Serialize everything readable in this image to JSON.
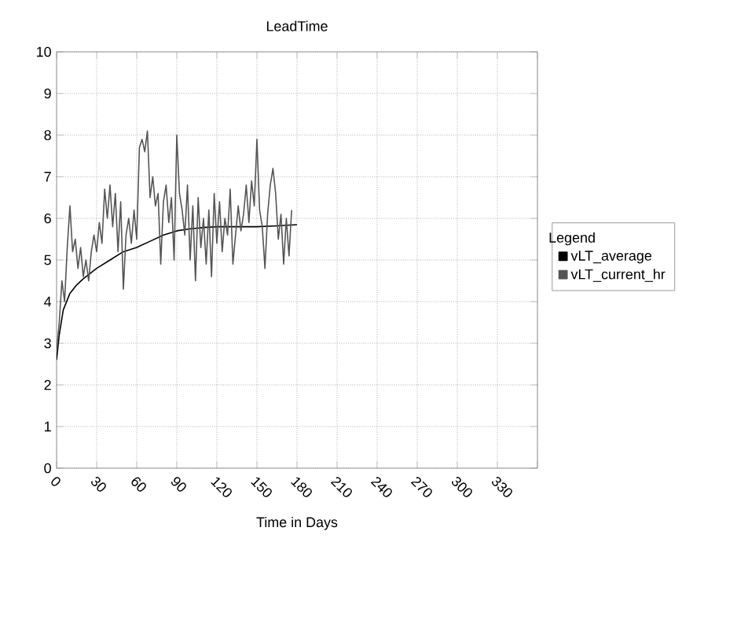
{
  "chart_data": {
    "type": "line",
    "title": "LeadTime",
    "xlabel": "Time in Days",
    "legend_title": "Legend",
    "xlim": [
      0,
      360
    ],
    "xticks": [
      0,
      30,
      60,
      90,
      120,
      150,
      180,
      210,
      240,
      270,
      300,
      330,
      {
        "value": 360,
        "label": null
      }
    ],
    "ylim": [
      0,
      10
    ],
    "yticks": [
      0,
      1,
      2,
      3,
      4,
      5,
      6,
      7,
      8,
      9,
      10
    ],
    "grid": true,
    "legend": "right",
    "marker": "none",
    "line_style": "solid",
    "series": [
      {
        "name": "vLT_average",
        "color": "#000000",
        "x": [
          0,
          2,
          5,
          10,
          15,
          20,
          30,
          40,
          50,
          60,
          70,
          80,
          90,
          100,
          110,
          120,
          135,
          150,
          165,
          180
        ],
        "values": [
          2.6,
          3.2,
          3.8,
          4.2,
          4.4,
          4.55,
          4.8,
          5.0,
          5.2,
          5.3,
          5.45,
          5.6,
          5.7,
          5.75,
          5.78,
          5.8,
          5.8,
          5.8,
          5.82,
          5.85
        ]
      },
      {
        "name": "vLT_current_hr",
        "color": "#555555",
        "x": [
          0,
          2,
          4,
          6,
          8,
          10,
          12,
          14,
          16,
          18,
          20,
          22,
          24,
          26,
          28,
          30,
          32,
          34,
          36,
          38,
          40,
          42,
          44,
          46,
          48,
          50,
          52,
          54,
          56,
          58,
          60,
          62,
          64,
          66,
          68,
          70,
          72,
          74,
          76,
          78,
          80,
          82,
          84,
          86,
          88,
          90,
          92,
          94,
          96,
          98,
          100,
          102,
          104,
          106,
          108,
          110,
          112,
          114,
          116,
          118,
          120,
          122,
          124,
          126,
          128,
          130,
          132,
          134,
          136,
          138,
          140,
          142,
          144,
          146,
          148,
          150,
          152,
          154,
          156,
          158,
          160,
          162,
          164,
          166,
          168,
          170,
          172,
          174,
          176
        ],
        "values": [
          2.8,
          3.5,
          4.5,
          4.0,
          5.3,
          6.3,
          5.2,
          5.5,
          4.8,
          5.3,
          4.6,
          5.0,
          4.5,
          5.2,
          5.6,
          5.2,
          5.9,
          5.4,
          6.7,
          6.0,
          6.8,
          5.8,
          6.6,
          5.2,
          6.4,
          4.3,
          5.6,
          6.0,
          5.4,
          6.2,
          5.5,
          7.7,
          7.9,
          7.6,
          8.1,
          6.5,
          7.0,
          6.3,
          6.6,
          4.9,
          6.4,
          6.8,
          5.9,
          6.5,
          5.0,
          8.0,
          6.6,
          6.2,
          5.6,
          6.8,
          5.0,
          6.3,
          4.5,
          6.5,
          5.3,
          6.0,
          4.9,
          6.2,
          4.6,
          6.6,
          5.4,
          6.4,
          5.2,
          6.0,
          5.6,
          6.7,
          4.9,
          5.6,
          6.3,
          5.7,
          6.1,
          6.8,
          5.9,
          6.9,
          6.3,
          7.9,
          6.2,
          5.8,
          4.8,
          6.1,
          6.8,
          7.2,
          6.6,
          5.5,
          6.1,
          4.9,
          6.0,
          5.1,
          6.2
        ]
      }
    ]
  }
}
